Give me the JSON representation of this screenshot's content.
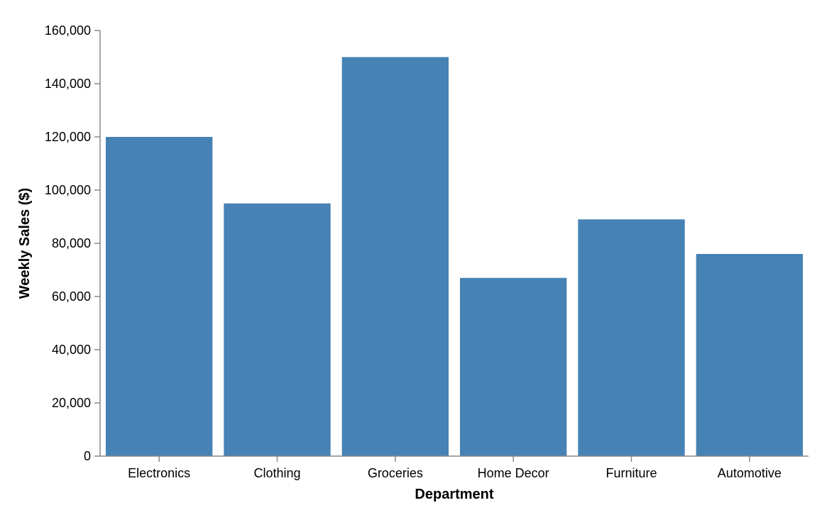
{
  "chart_data": {
    "type": "bar",
    "title": "",
    "xlabel": "Department",
    "ylabel": "Weekly Sales ($)",
    "categories": [
      "Electronics",
      "Clothing",
      "Groceries",
      "Home Decor",
      "Furniture",
      "Automotive"
    ],
    "values": [
      120000,
      95000,
      150000,
      67000,
      89000,
      76000
    ],
    "ylim": [
      0,
      160000
    ],
    "yticks": [
      0,
      20000,
      40000,
      60000,
      80000,
      100000,
      120000,
      140000,
      160000
    ],
    "ytick_labels": [
      "0",
      "20,000",
      "40,000",
      "60,000",
      "80,000",
      "100,000",
      "120,000",
      "140,000",
      "160,000"
    ],
    "grid": false,
    "legend": "none",
    "colors": {
      "bar": "#4682b4",
      "axis": "#888888",
      "text": "#000000"
    }
  }
}
